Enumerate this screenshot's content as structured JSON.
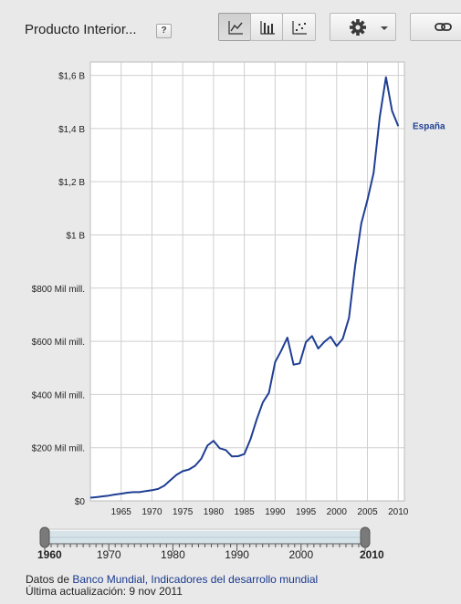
{
  "header": {
    "title": "Producto Interior...",
    "help_label": "?",
    "chart_type_buttons": [
      {
        "name": "line",
        "icon": "line-chart-icon",
        "active": true
      },
      {
        "name": "bar",
        "icon": "bar-chart-icon",
        "active": false
      },
      {
        "name": "scatter",
        "icon": "scatter-chart-icon",
        "active": false
      }
    ],
    "settings_icon": "gear-icon",
    "link_icon": "link-icon"
  },
  "chart_data": {
    "type": "line",
    "title": "",
    "xlabel": "",
    "ylabel": "",
    "xlim": [
      1960,
      2011
    ],
    "ylim": [
      0,
      1.65
    ],
    "x_ticks": [
      1965,
      1970,
      1975,
      1980,
      1985,
      1990,
      1995,
      2000,
      2005,
      2010
    ],
    "y_ticks": [
      {
        "value": 0,
        "label": "$0"
      },
      {
        "value": 0.2,
        "label": "$200 Mil mill."
      },
      {
        "value": 0.4,
        "label": "$400 Mil mill."
      },
      {
        "value": 0.6,
        "label": "$600 Mil mill."
      },
      {
        "value": 0.8,
        "label": "$800 Mil mill."
      },
      {
        "value": 1.0,
        "label": "$1 B"
      },
      {
        "value": 1.2,
        "label": "$1,2 B"
      },
      {
        "value": 1.4,
        "label": "$1,4 B"
      },
      {
        "value": 1.6,
        "label": "$1,6 B"
      }
    ],
    "grid": true,
    "legend_placement": "right, at line end",
    "series": [
      {
        "name": "España",
        "color": "#1f3f93",
        "x": [
          1960,
          1961,
          1962,
          1963,
          1964,
          1965,
          1966,
          1967,
          1968,
          1969,
          1970,
          1971,
          1972,
          1973,
          1974,
          1975,
          1976,
          1977,
          1978,
          1979,
          1980,
          1981,
          1982,
          1983,
          1984,
          1985,
          1986,
          1987,
          1988,
          1989,
          1990,
          1991,
          1992,
          1993,
          1994,
          1995,
          1996,
          1997,
          1998,
          1999,
          2000,
          2001,
          2002,
          2003,
          2004,
          2005,
          2006,
          2007,
          2008,
          2009,
          2010
        ],
        "values": [
          0.012,
          0.014,
          0.017,
          0.02,
          0.024,
          0.027,
          0.031,
          0.033,
          0.033,
          0.037,
          0.04,
          0.045,
          0.057,
          0.078,
          0.098,
          0.112,
          0.118,
          0.132,
          0.158,
          0.208,
          0.226,
          0.198,
          0.191,
          0.167,
          0.168,
          0.176,
          0.232,
          0.305,
          0.37,
          0.406,
          0.522,
          0.565,
          0.614,
          0.512,
          0.517,
          0.597,
          0.62,
          0.573,
          0.598,
          0.617,
          0.582,
          0.61,
          0.688,
          0.883,
          1.044,
          1.131,
          1.234,
          1.443,
          1.593,
          1.466,
          1.409
        ]
      }
    ]
  },
  "slider": {
    "range_start": 1960,
    "range_end": 2010,
    "axis_ticks": [
      1960,
      1970,
      1980,
      1990,
      2000,
      2010
    ],
    "label_start": "1960",
    "label_end": "2010"
  },
  "footer": {
    "source_prefix": "Datos de ",
    "source_link": "Banco Mundial, Indicadores del desarrollo mundial",
    "updated": "Última actualización: 9 nov 2011"
  }
}
